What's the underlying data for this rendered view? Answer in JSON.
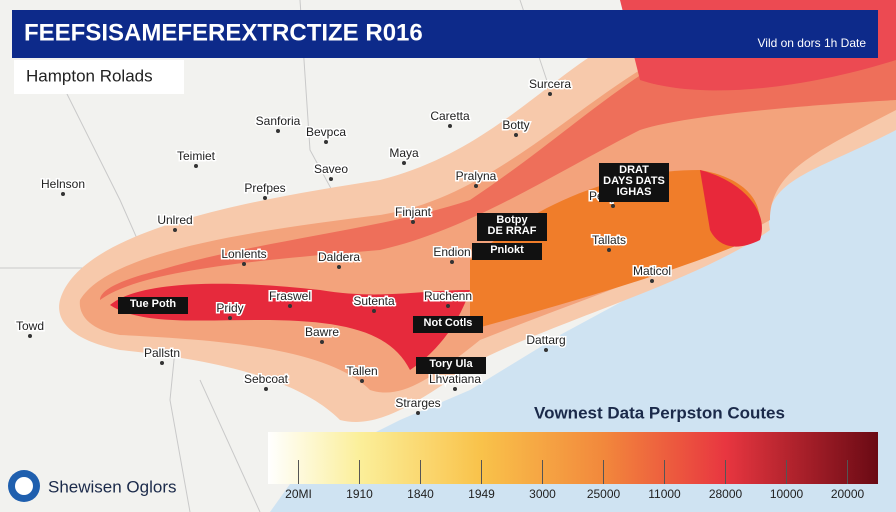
{
  "header": {
    "title": "FEEFSISAMEFEREXTRCTIZE R016",
    "subtitle": "Vild on dors 1h Date"
  },
  "region_label": "Hampton Rolads",
  "places": [
    "Surcera",
    "Sanforia",
    "Bevpca",
    "Caretta",
    "Botty",
    "Teimiet",
    "Saveo",
    "Maya",
    "Helnson",
    "Prefpes",
    "Pralyna",
    "Unlred",
    "Finjant",
    "Lonlents",
    "Daldera",
    "Endion",
    "Tallats",
    "Penpone",
    "Fraswel",
    "Sutenta",
    "Ruchenn",
    "Pridy",
    "Maticol",
    "Towd",
    "Bawre",
    "Dattarg",
    "Pallstn",
    "Tallen",
    "Lhvatiana",
    "Sebcoat",
    "Strarges"
  ],
  "callouts": [
    [
      "Tue Poth"
    ],
    [
      "Not Cotls"
    ],
    [
      "Tory Ula"
    ],
    [
      "Pnlokt"
    ],
    [
      "Botpy",
      "DE RRAF"
    ],
    [
      "DRAT",
      "DAYS DATS",
      "IGHAS"
    ]
  ],
  "legend": {
    "title": "Vownest Data Perpston Coutes",
    "labels": [
      "20MI",
      "1910",
      "1840",
      "1949",
      "3000",
      "25000",
      "11000",
      "28000",
      "10000",
      "20000"
    ]
  },
  "footer": {
    "logo_text": "Shewisen Oglors"
  }
}
